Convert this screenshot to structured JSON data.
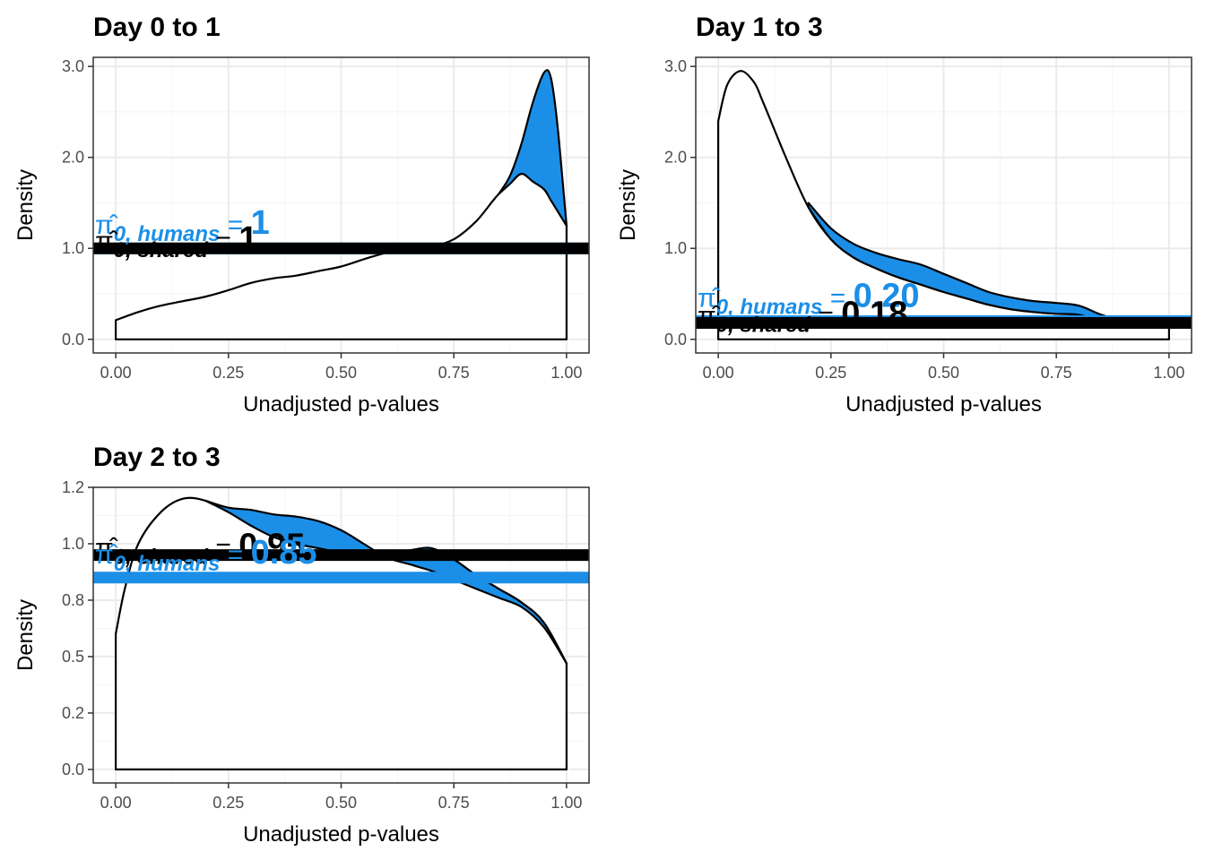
{
  "colors": {
    "humans": "#1B8FE8",
    "shared": "#000000",
    "panel_border": "#333333",
    "grid_major": "#EBEBEB",
    "grid_minor": "#F5F5F5",
    "tick_text": "#4D4D4D"
  },
  "chart_data": [
    {
      "type": "area",
      "title": "Day 0 to 1",
      "xlabel": "Unadjusted p-values",
      "ylabel": "Density",
      "xlim": [
        -0.05,
        1.05
      ],
      "ylim": [
        -0.15,
        3.1
      ],
      "xticks": [
        "0.00",
        "0.25",
        "0.50",
        "0.75",
        "1.00"
      ],
      "xtick_values": [
        0,
        0.25,
        0.5,
        0.75,
        1.0
      ],
      "yticks": [
        "0.0",
        "1.0",
        "2.0",
        "3.0"
      ],
      "ytick_values": [
        0,
        1,
        2,
        3
      ],
      "grid": true,
      "series": [
        {
          "name": "shared",
          "x": [
            0,
            0.05,
            0.1,
            0.15,
            0.2,
            0.25,
            0.3,
            0.35,
            0.4,
            0.45,
            0.5,
            0.55,
            0.6,
            0.65,
            0.7,
            0.75,
            0.8,
            0.85,
            0.9,
            0.95,
            1.0
          ],
          "y": [
            0.21,
            0.3,
            0.37,
            0.42,
            0.47,
            0.54,
            0.62,
            0.67,
            0.7,
            0.75,
            0.8,
            0.88,
            0.95,
            0.98,
            1.02,
            1.1,
            1.3,
            1.6,
            1.82,
            1.65,
            1.25
          ]
        },
        {
          "name": "humans",
          "x": [
            0.85,
            0.875,
            0.9,
            0.925,
            0.95,
            0.965,
            0.98,
            1.0
          ],
          "y": [
            1.6,
            1.8,
            2.15,
            2.6,
            2.93,
            2.88,
            2.35,
            1.25
          ]
        }
      ],
      "hlines": [
        {
          "series": "humans",
          "y": 1.0,
          "label_subscript": "0, humans",
          "label_value": "1"
        },
        {
          "series": "shared",
          "y": 1.0,
          "label_subscript": "0, shared",
          "label_value": "1"
        }
      ]
    },
    {
      "type": "area",
      "title": "Day 1 to 3",
      "xlabel": "Unadjusted p-values",
      "ylabel": "Density",
      "xlim": [
        -0.05,
        1.05
      ],
      "ylim": [
        -0.15,
        3.1
      ],
      "xticks": [
        "0.00",
        "0.25",
        "0.50",
        "0.75",
        "1.00"
      ],
      "xtick_values": [
        0,
        0.25,
        0.5,
        0.75,
        1.0
      ],
      "yticks": [
        "0.0",
        "1.0",
        "2.0",
        "3.0"
      ],
      "ytick_values": [
        0,
        1,
        2,
        3
      ],
      "grid": true,
      "series": [
        {
          "name": "shared",
          "x": [
            0,
            0.02,
            0.05,
            0.08,
            0.1,
            0.15,
            0.2,
            0.25,
            0.3,
            0.35,
            0.4,
            0.45,
            0.5,
            0.55,
            0.6,
            0.65,
            0.7,
            0.75,
            0.8,
            0.85,
            0.9,
            0.95,
            1.0
          ],
          "y": [
            2.4,
            2.8,
            2.95,
            2.82,
            2.6,
            2.0,
            1.45,
            1.1,
            0.9,
            0.78,
            0.68,
            0.6,
            0.52,
            0.45,
            0.38,
            0.33,
            0.3,
            0.28,
            0.27,
            0.2,
            0.16,
            0.14,
            0.13
          ]
        },
        {
          "name": "humans",
          "x": [
            0.2,
            0.25,
            0.3,
            0.35,
            0.4,
            0.45,
            0.5,
            0.55,
            0.6,
            0.65,
            0.7,
            0.75,
            0.8,
            0.85,
            0.9
          ],
          "y": [
            1.5,
            1.22,
            1.05,
            0.95,
            0.88,
            0.82,
            0.72,
            0.62,
            0.52,
            0.46,
            0.42,
            0.4,
            0.37,
            0.27,
            0.2
          ]
        }
      ],
      "hlines": [
        {
          "series": "humans",
          "y": 0.2,
          "label_subscript": "0, humans",
          "label_value": "0.20"
        },
        {
          "series": "shared",
          "y": 0.18,
          "label_subscript": "0, shared",
          "label_value": "0.18"
        }
      ]
    },
    {
      "type": "area",
      "title": "Day 2 to 3",
      "xlabel": "Unadjusted p-values",
      "ylabel": "Density",
      "xlim": [
        -0.05,
        1.05
      ],
      "ylim": [
        -0.06,
        1.25
      ],
      "xticks": [
        "0.00",
        "0.25",
        "0.50",
        "0.75",
        "1.00"
      ],
      "xtick_values": [
        0,
        0.25,
        0.5,
        0.75,
        1.0
      ],
      "yticks": [
        "0.0",
        "0.2",
        "0.5",
        "0.8",
        "1.0",
        "1.2"
      ],
      "ytick_values": [
        0,
        0.25,
        0.5,
        0.75,
        1.0,
        1.25
      ],
      "grid": true,
      "series": [
        {
          "name": "shared",
          "x": [
            0,
            0.02,
            0.05,
            0.1,
            0.15,
            0.2,
            0.25,
            0.3,
            0.35,
            0.4,
            0.45,
            0.5,
            0.55,
            0.6,
            0.65,
            0.7,
            0.75,
            0.8,
            0.85,
            0.9,
            0.95,
            1.0
          ],
          "y": [
            0.6,
            0.8,
            1.0,
            1.14,
            1.2,
            1.19,
            1.14,
            1.08,
            1.03,
            1.0,
            0.98,
            0.96,
            0.95,
            0.96,
            0.97,
            0.98,
            0.93,
            0.86,
            0.8,
            0.74,
            0.65,
            0.47
          ]
        },
        {
          "name": "humans",
          "x": [
            0.2,
            0.25,
            0.3,
            0.35,
            0.4,
            0.45,
            0.5,
            0.55,
            0.6,
            0.65,
            0.7,
            0.75,
            0.8,
            0.85,
            0.9,
            0.95,
            1.0
          ],
          "y": [
            1.19,
            1.16,
            1.15,
            1.13,
            1.12,
            1.1,
            1.06,
            1.0,
            0.94,
            0.91,
            0.88,
            0.84,
            0.8,
            0.76,
            0.72,
            0.63,
            0.47
          ]
        }
      ],
      "hlines": [
        {
          "series": "shared",
          "y": 0.95,
          "label_subscript": "0, shared",
          "label_value": "0.95"
        },
        {
          "series": "humans",
          "y": 0.85,
          "label_subscript": "0, humans",
          "label_value": "0.85"
        }
      ]
    }
  ]
}
